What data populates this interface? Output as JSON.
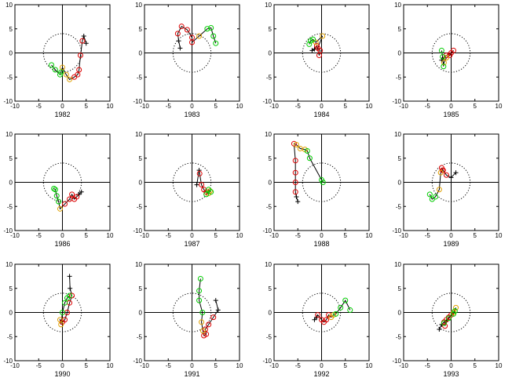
{
  "figure": {
    "colors": {
      "axes": "#000000",
      "line": "#000000",
      "green": "#00cc00",
      "orange": "#e0a000",
      "red": "#dd0000",
      "circle": "#000000"
    }
  },
  "chart_data": [
    {
      "type": "scatter",
      "title": "1982",
      "xlim": [
        -10,
        10
      ],
      "ylim": [
        -10,
        10
      ],
      "xticks": [
        -10,
        -5,
        0,
        5,
        10
      ],
      "yticks": [
        -10,
        -5,
        0,
        5,
        10
      ],
      "grid": false,
      "reference_circle_radius": 4,
      "points": [
        [
          5,
          2
        ],
        [
          4.5,
          3.5
        ],
        [
          4.2,
          2.5
        ],
        [
          3.8,
          -0.5
        ],
        [
          3.5,
          -3.5
        ],
        [
          3.2,
          -4.5
        ],
        [
          2.5,
          -5
        ],
        [
          1.5,
          -5.5
        ],
        [
          0.8,
          -4.5
        ],
        [
          0,
          -3
        ],
        [
          -0.3,
          -4
        ],
        [
          -0.5,
          -4.5
        ],
        [
          -1.5,
          -3.5
        ],
        [
          -2.3,
          -2.5
        ]
      ]
    },
    {
      "type": "scatter",
      "title": "1983",
      "xlim": [
        -10,
        10
      ],
      "ylim": [
        -10,
        10
      ],
      "xticks": [
        -10,
        -5,
        0,
        5,
        10
      ],
      "yticks": [
        -10,
        -5,
        0,
        5,
        10
      ],
      "grid": false,
      "reference_circle_radius": 4,
      "points": [
        [
          -2.5,
          1
        ],
        [
          -2.8,
          2.5
        ],
        [
          -3,
          4
        ],
        [
          -2.2,
          5.5
        ],
        [
          -1,
          4.8
        ],
        [
          0,
          3.2
        ],
        [
          0,
          2.2
        ],
        [
          1.5,
          3.5
        ],
        [
          3.2,
          5
        ],
        [
          4,
          5.2
        ],
        [
          4.5,
          3.5
        ],
        [
          5,
          2
        ]
      ]
    },
    {
      "type": "scatter",
      "title": "1984",
      "xlim": [
        -10,
        10
      ],
      "ylim": [
        -10,
        10
      ],
      "xticks": [
        -10,
        -5,
        0,
        5,
        10
      ],
      "yticks": [
        -10,
        -5,
        0,
        5,
        10
      ],
      "grid": false,
      "reference_circle_radius": 4,
      "points": [
        [
          -2,
          0.5
        ],
        [
          -1.5,
          0.8
        ],
        [
          -1,
          1.5
        ],
        [
          -0.5,
          -0.5
        ],
        [
          -0.3,
          0.5
        ],
        [
          -0.8,
          1
        ],
        [
          0.2,
          3.5
        ],
        [
          -1.2,
          2.2
        ],
        [
          -1.8,
          2.8
        ],
        [
          -2.3,
          2.5
        ],
        [
          -2.6,
          1.8
        ]
      ]
    },
    {
      "type": "scatter",
      "title": "1985",
      "xlim": [
        -10,
        10
      ],
      "ylim": [
        -10,
        10
      ],
      "xticks": [
        -10,
        -5,
        0,
        5,
        10
      ],
      "yticks": [
        -10,
        -5,
        0,
        5,
        10
      ],
      "grid": false,
      "reference_circle_radius": 4,
      "points": [
        [
          -2,
          -1.5
        ],
        [
          -1.5,
          -1
        ],
        [
          -1,
          -0.5
        ],
        [
          0,
          0
        ],
        [
          0.5,
          0.5
        ],
        [
          -0.3,
          -0.5
        ],
        [
          -1,
          -1
        ],
        [
          -1.5,
          -2
        ],
        [
          -1.6,
          -2.8
        ],
        [
          -1.8,
          -0.8
        ],
        [
          -2,
          0.5
        ]
      ]
    },
    {
      "type": "scatter",
      "title": "1986",
      "xlim": [
        -10,
        10
      ],
      "ylim": [
        -10,
        10
      ],
      "xticks": [
        -10,
        -5,
        0,
        5,
        10
      ],
      "yticks": [
        -10,
        -5,
        0,
        5,
        10
      ],
      "grid": false,
      "reference_circle_radius": 4,
      "points": [
        [
          4,
          -2
        ],
        [
          3.5,
          -2.5
        ],
        [
          3,
          -3
        ],
        [
          2.5,
          -3.5
        ],
        [
          2,
          -2.5
        ],
        [
          1.5,
          -3.5
        ],
        [
          0.5,
          -4.5
        ],
        [
          -0.5,
          -5.5
        ],
        [
          -0.8,
          -4
        ],
        [
          -1.2,
          -2.8
        ],
        [
          -1.5,
          -1.5
        ],
        [
          -1.8,
          -1.3
        ]
      ]
    },
    {
      "type": "scatter",
      "title": "1987",
      "xlim": [
        -10,
        10
      ],
      "ylim": [
        -10,
        10
      ],
      "xticks": [
        -10,
        -5,
        0,
        5,
        10
      ],
      "yticks": [
        -10,
        -5,
        0,
        5,
        10
      ],
      "grid": false,
      "reference_circle_radius": 4,
      "points": [
        [
          1,
          -0.5
        ],
        [
          1.5,
          2.5
        ],
        [
          1.6,
          1.8
        ],
        [
          2,
          -0.5
        ],
        [
          2.5,
          -1.5
        ],
        [
          3,
          -2
        ],
        [
          3.5,
          -2.3
        ],
        [
          3.8,
          -1.8
        ],
        [
          4,
          -2
        ],
        [
          3.5,
          -1.5
        ],
        [
          3,
          -2.5
        ]
      ]
    },
    {
      "type": "scatter",
      "title": "1988",
      "xlim": [
        -10,
        10
      ],
      "ylim": [
        -10,
        10
      ],
      "xticks": [
        -10,
        -5,
        0,
        5,
        10
      ],
      "yticks": [
        -10,
        -5,
        0,
        5,
        10
      ],
      "grid": false,
      "reference_circle_radius": 4,
      "points": [
        [
          -5,
          -4
        ],
        [
          -5.3,
          -3
        ],
        [
          -5.5,
          -2
        ],
        [
          -5.5,
          0
        ],
        [
          -5.5,
          2
        ],
        [
          -5.5,
          4.5
        ],
        [
          -5.8,
          8
        ],
        [
          -5.3,
          7.8
        ],
        [
          -4.5,
          7
        ],
        [
          -3.5,
          6.8
        ],
        [
          -3,
          6.5
        ],
        [
          -2.5,
          5
        ],
        [
          0,
          0.5
        ],
        [
          0.3,
          0
        ]
      ]
    },
    {
      "type": "scatter",
      "title": "1989",
      "xlim": [
        -10,
        10
      ],
      "ylim": [
        -10,
        10
      ],
      "xticks": [
        -10,
        -5,
        0,
        5,
        10
      ],
      "yticks": [
        -10,
        -5,
        0,
        5,
        10
      ],
      "grid": false,
      "reference_circle_radius": 4,
      "points": [
        [
          1,
          2
        ],
        [
          0,
          1
        ],
        [
          -1,
          1.5
        ],
        [
          -1.7,
          2.5
        ],
        [
          -2,
          3
        ],
        [
          -1.8,
          2.5
        ],
        [
          -2.2,
          2
        ],
        [
          -2.5,
          -1.5
        ],
        [
          -3.3,
          -3
        ],
        [
          -4,
          -3.5
        ],
        [
          -4.5,
          -2.5
        ]
      ]
    },
    {
      "type": "scatter",
      "title": "1990",
      "xlim": [
        -10,
        10
      ],
      "ylim": [
        -10,
        10
      ],
      "xticks": [
        -10,
        -5,
        0,
        5,
        10
      ],
      "yticks": [
        -10,
        -5,
        0,
        5,
        10
      ],
      "grid": false,
      "reference_circle_radius": 4,
      "points": [
        [
          1.5,
          7.5
        ],
        [
          1.6,
          5
        ],
        [
          2,
          3.5
        ],
        [
          1.5,
          2
        ],
        [
          1,
          0
        ],
        [
          0.5,
          -1.5
        ],
        [
          0,
          -2
        ],
        [
          -0.5,
          -1.5
        ],
        [
          -0.3,
          -2.5
        ],
        [
          0,
          0
        ],
        [
          0.5,
          2
        ],
        [
          1,
          3
        ],
        [
          1.5,
          3.5
        ]
      ]
    },
    {
      "type": "scatter",
      "title": "1991",
      "xlim": [
        -10,
        10
      ],
      "ylim": [
        -10,
        10
      ],
      "xticks": [
        -10,
        -5,
        0,
        5,
        10
      ],
      "yticks": [
        -10,
        -5,
        0,
        5,
        10
      ],
      "grid": false,
      "reference_circle_radius": 4,
      "points": [
        [
          5,
          2.5
        ],
        [
          5.5,
          0.5
        ],
        [
          4.5,
          -1
        ],
        [
          3.5,
          -2.5
        ],
        [
          2.8,
          -3.5
        ],
        [
          3,
          -4.5
        ],
        [
          2.5,
          -4.8
        ],
        [
          2.3,
          -3.8
        ],
        [
          2,
          -2
        ],
        [
          2.2,
          0
        ],
        [
          1.5,
          2.5
        ],
        [
          1.5,
          4.5
        ],
        [
          1.8,
          7
        ]
      ]
    },
    {
      "type": "scatter",
      "title": "1992",
      "xlim": [
        -10,
        10
      ],
      "ylim": [
        -10,
        10
      ],
      "xticks": [
        -10,
        -5,
        0,
        5,
        10
      ],
      "yticks": [
        -10,
        -5,
        0,
        5,
        10
      ],
      "grid": false,
      "reference_circle_radius": 4,
      "points": [
        [
          -1.5,
          -1.5
        ],
        [
          -1,
          -1
        ],
        [
          -0.8,
          -0.5
        ],
        [
          0,
          -1.5
        ],
        [
          0.5,
          -2
        ],
        [
          1,
          -1.5
        ],
        [
          1.5,
          -0.5
        ],
        [
          2,
          -1
        ],
        [
          2.5,
          -0.5
        ],
        [
          3,
          -0.3
        ],
        [
          4,
          1
        ],
        [
          5,
          2.5
        ],
        [
          6,
          0.5
        ]
      ]
    },
    {
      "type": "scatter",
      "title": "1993",
      "xlim": [
        -10,
        10
      ],
      "ylim": [
        -10,
        10
      ],
      "xticks": [
        -10,
        -5,
        0,
        5,
        10
      ],
      "yticks": [
        -10,
        -5,
        0,
        5,
        10
      ],
      "grid": false,
      "reference_circle_radius": 4,
      "points": [
        [
          -2.5,
          -3.5
        ],
        [
          -2,
          -2.5
        ],
        [
          -1.5,
          -2
        ],
        [
          -1,
          -1.5
        ],
        [
          -1.3,
          -2.8
        ],
        [
          -0.5,
          -1
        ],
        [
          0,
          -0.5
        ],
        [
          0.5,
          0
        ],
        [
          1,
          1
        ],
        [
          0.8,
          0.3
        ],
        [
          0.5,
          -0.3
        ],
        [
          -0.5,
          -1.2
        ],
        [
          -1.5,
          -2.2
        ]
      ]
    }
  ]
}
